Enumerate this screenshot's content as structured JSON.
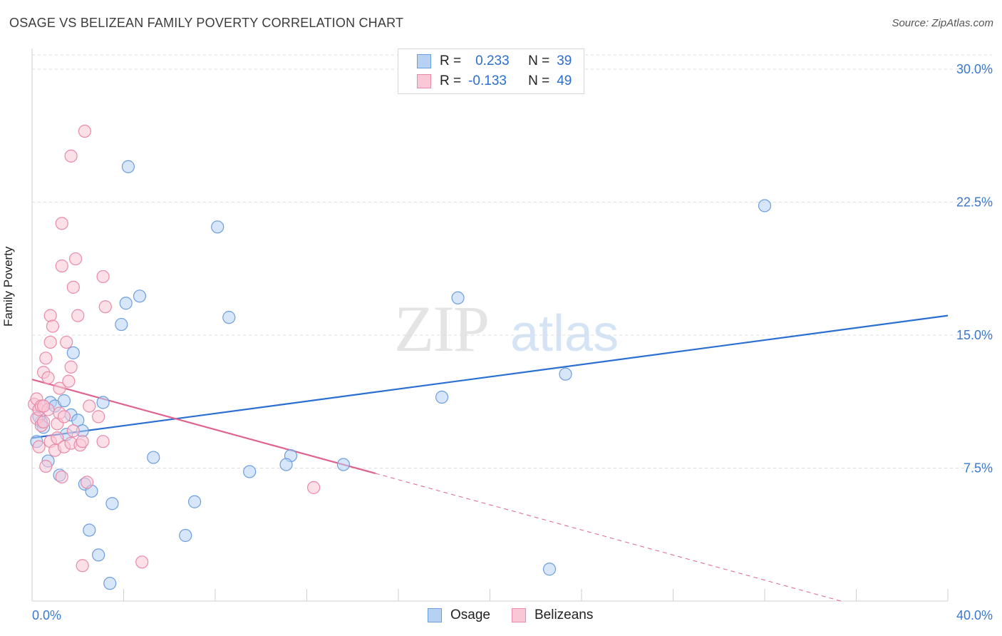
{
  "title": "OSAGE VS BELIZEAN FAMILY POVERTY CORRELATION CHART",
  "source": "Source: ZipAtlas.com",
  "watermark": {
    "zip": "ZIP",
    "atlas": "atlas"
  },
  "legend_top": [
    {
      "r_label": "R =",
      "r_value": "0.233",
      "n_label": "N =",
      "n_value": "39"
    },
    {
      "r_label": "R =",
      "r_value": "-0.133",
      "n_label": "N =",
      "n_value": "49"
    }
  ],
  "legend_bottom": [
    {
      "label": "Osage"
    },
    {
      "label": "Belizeans"
    }
  ],
  "colors": {
    "osage": "#6c9ee0",
    "osage_fill": "#b7d1f3",
    "osage_line": "#2a6fd1",
    "belizean": "#e98aa8",
    "belizean_fill": "#f9c7d6",
    "belizean_line": "#e0628f",
    "tick_text": "#3a78d0"
  },
  "chart_data": {
    "type": "scatter",
    "title": "OSAGE VS BELIZEAN FAMILY POVERTY CORRELATION CHART",
    "xlabel": "",
    "ylabel": "Family Poverty",
    "xlim": [
      0,
      40
    ],
    "ylim": [
      0,
      31
    ],
    "x_tick_labels": [
      "0.0%",
      "40.0%"
    ],
    "y_ticks": [
      {
        "value": 7.5,
        "label": "7.5%"
      },
      {
        "value": 15.0,
        "label": "15.0%"
      },
      {
        "value": 22.5,
        "label": "22.5%"
      },
      {
        "value": 30.0,
        "label": "30.0%"
      }
    ],
    "grid": "horizontal dashed",
    "series": [
      {
        "name": "Osage",
        "points": [
          [
            0.2,
            9.0
          ],
          [
            0.4,
            10.1
          ],
          [
            0.5,
            9.8
          ],
          [
            0.7,
            7.9
          ],
          [
            0.8,
            11.2
          ],
          [
            1.0,
            11.0
          ],
          [
            1.2,
            7.1
          ],
          [
            1.4,
            11.3
          ],
          [
            1.5,
            9.4
          ],
          [
            1.7,
            10.5
          ],
          [
            1.8,
            14.0
          ],
          [
            2.0,
            10.2
          ],
          [
            2.2,
            9.6
          ],
          [
            2.3,
            6.6
          ],
          [
            2.5,
            4.0
          ],
          [
            2.6,
            6.2
          ],
          [
            2.9,
            2.6
          ],
          [
            3.1,
            11.2
          ],
          [
            3.4,
            1.0
          ],
          [
            3.5,
            5.5
          ],
          [
            3.9,
            15.6
          ],
          [
            4.1,
            16.8
          ],
          [
            4.2,
            24.5
          ],
          [
            4.7,
            17.2
          ],
          [
            5.3,
            8.1
          ],
          [
            6.7,
            3.7
          ],
          [
            7.1,
            5.6
          ],
          [
            8.1,
            21.1
          ],
          [
            8.6,
            16.0
          ],
          [
            9.5,
            7.3
          ],
          [
            11.3,
            8.2
          ],
          [
            11.1,
            7.7
          ],
          [
            13.6,
            7.7
          ],
          [
            17.9,
            11.5
          ],
          [
            18.6,
            17.1
          ],
          [
            22.6,
            1.8
          ],
          [
            23.3,
            12.8
          ],
          [
            32.0,
            22.3
          ],
          [
            0.3,
            10.4
          ]
        ],
        "trend": {
          "x": [
            0,
            40
          ],
          "y": [
            9.2,
            16.1
          ]
        }
      },
      {
        "name": "Belizeans",
        "points": [
          [
            0.1,
            11.1
          ],
          [
            0.2,
            10.3
          ],
          [
            0.2,
            11.4
          ],
          [
            0.3,
            10.8
          ],
          [
            0.3,
            8.7
          ],
          [
            0.4,
            11.0
          ],
          [
            0.4,
            9.9
          ],
          [
            0.5,
            12.9
          ],
          [
            0.5,
            10.1
          ],
          [
            0.6,
            13.7
          ],
          [
            0.6,
            7.6
          ],
          [
            0.7,
            12.6
          ],
          [
            0.7,
            10.8
          ],
          [
            0.8,
            14.6
          ],
          [
            0.8,
            9.0
          ],
          [
            0.8,
            16.1
          ],
          [
            0.9,
            15.5
          ],
          [
            1.0,
            8.5
          ],
          [
            1.1,
            9.2
          ],
          [
            1.1,
            10.0
          ],
          [
            1.2,
            12.0
          ],
          [
            1.2,
            10.6
          ],
          [
            1.3,
            21.3
          ],
          [
            1.3,
            18.9
          ],
          [
            1.3,
            7.0
          ],
          [
            1.4,
            10.4
          ],
          [
            1.4,
            8.7
          ],
          [
            1.5,
            14.6
          ],
          [
            1.6,
            12.4
          ],
          [
            1.7,
            25.1
          ],
          [
            1.7,
            13.2
          ],
          [
            1.7,
            8.9
          ],
          [
            1.8,
            17.7
          ],
          [
            1.8,
            9.6
          ],
          [
            1.9,
            19.3
          ],
          [
            2.0,
            16.1
          ],
          [
            2.1,
            8.8
          ],
          [
            2.2,
            9.0
          ],
          [
            2.2,
            2.0
          ],
          [
            2.3,
            26.5
          ],
          [
            2.4,
            6.7
          ],
          [
            2.5,
            11.0
          ],
          [
            2.9,
            10.4
          ],
          [
            3.1,
            18.3
          ],
          [
            3.1,
            9.0
          ],
          [
            3.2,
            16.6
          ],
          [
            4.8,
            2.2
          ],
          [
            12.3,
            6.4
          ],
          [
            0.5,
            11.0
          ]
        ],
        "trend": {
          "x": [
            0,
            15
          ],
          "y": [
            12.5,
            7.2
          ]
        },
        "trend_extension": {
          "x": [
            15,
            40
          ],
          "y": [
            7.2,
            -1.6
          ]
        }
      }
    ]
  }
}
